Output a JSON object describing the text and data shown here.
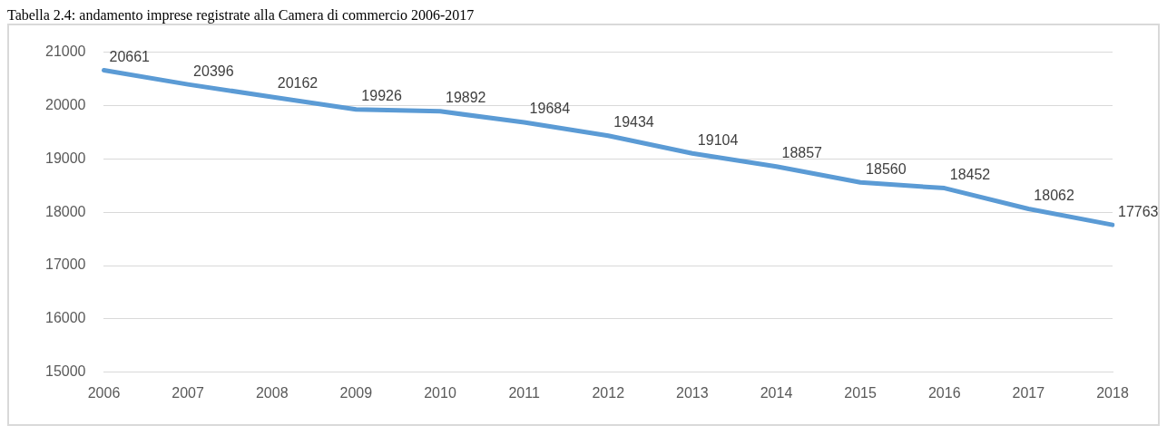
{
  "chart_data": {
    "type": "line",
    "title": "Tabella 2.4: andamento imprese registrate alla Camera di commercio 2006-2017",
    "categories": [
      "2006",
      "2007",
      "2008",
      "2009",
      "2010",
      "2011",
      "2012",
      "2013",
      "2014",
      "2015",
      "2016",
      "2017",
      "2018"
    ],
    "values": [
      20661,
      20396,
      20162,
      19926,
      19892,
      19684,
      19434,
      19104,
      18857,
      18560,
      18452,
      18062,
      17763
    ],
    "color": "#5b9bd5",
    "ylim": [
      15000,
      21000
    ],
    "yticks": [
      15000,
      16000,
      17000,
      18000,
      19000,
      20000,
      21000
    ],
    "grid": "y",
    "data_labels": true,
    "marker": "none"
  }
}
